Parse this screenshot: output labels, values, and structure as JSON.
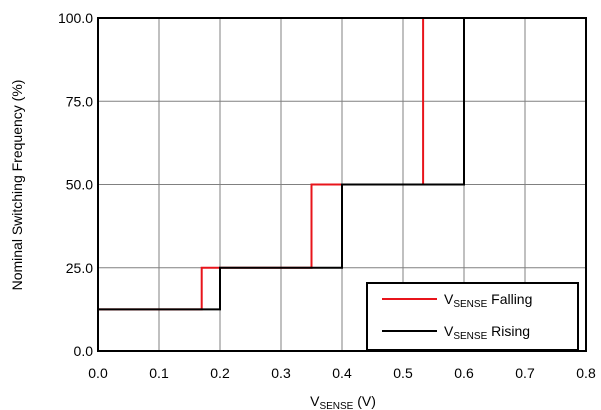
{
  "chart_data": {
    "type": "line",
    "title": "",
    "ylabel": "Nominal Switching Frequency (%)",
    "xlabel": {
      "prefix": "V",
      "subscript": "SENSE",
      "suffix": " (V)"
    },
    "xlim": [
      0,
      0.8
    ],
    "ylim": [
      0,
      100
    ],
    "x_ticks": [
      0,
      0.1,
      0.2,
      0.3,
      0.4,
      0.5,
      0.6,
      0.7,
      0.8
    ],
    "x_tick_labels": [
      "0.0",
      "0.1",
      "0.2",
      "0.3",
      "0.4",
      "0.5",
      "0.6",
      "0.7",
      "0.8"
    ],
    "y_ticks": [
      0,
      25,
      50,
      75,
      100
    ],
    "y_tick_labels": [
      "0.0",
      "25.0",
      "50.0",
      "75.0",
      "100.0"
    ],
    "grid": true,
    "legend_position": "bottom-right",
    "series": [
      {
        "name": {
          "prefix": "V",
          "subscript": "SENSE",
          "suffix": " Falling"
        },
        "color": "#e8141b",
        "x": [
          0,
          0.17,
          0.17,
          0.35,
          0.35,
          0.533,
          0.533,
          0.6
        ],
        "y": [
          12.5,
          12.5,
          25,
          25,
          50,
          50,
          100,
          100
        ]
      },
      {
        "name": {
          "prefix": "V",
          "subscript": "SENSE",
          "suffix": " Rising"
        },
        "color": "#000000",
        "x": [
          0,
          0.2,
          0.2,
          0.4,
          0.4,
          0.6,
          0.6
        ],
        "y": [
          12.5,
          12.5,
          25,
          25,
          50,
          50,
          100
        ]
      }
    ]
  }
}
